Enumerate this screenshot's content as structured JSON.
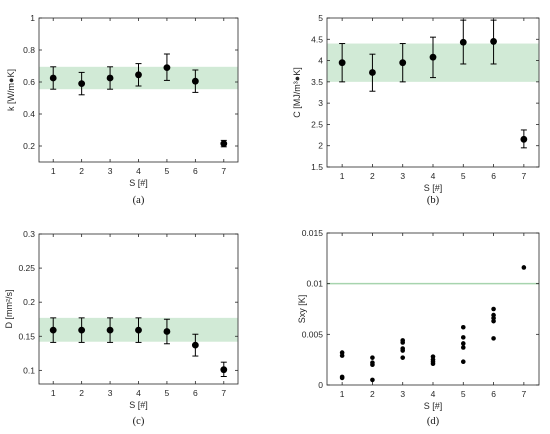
{
  "chart_data": [
    {
      "type": "scatter",
      "caption": "(a)",
      "xlabel": "S [#]",
      "ylabel": "k [W/m●K]",
      "xlim": [
        0.5,
        7.5
      ],
      "ylim": [
        0.1,
        1.0
      ],
      "xticks": [
        "1",
        "2",
        "3",
        "4",
        "5",
        "6",
        "7"
      ],
      "yticks": [
        "0.2",
        "0.4",
        "0.6",
        "0.8",
        "1"
      ],
      "band": [
        0.555,
        0.695
      ],
      "points": [
        {
          "x": 1,
          "y": 0.625,
          "lo": 0.555,
          "hi": 0.695
        },
        {
          "x": 2,
          "y": 0.59,
          "lo": 0.52,
          "hi": 0.66
        },
        {
          "x": 3,
          "y": 0.625,
          "lo": 0.555,
          "hi": 0.695
        },
        {
          "x": 4,
          "y": 0.645,
          "lo": 0.575,
          "hi": 0.715
        },
        {
          "x": 5,
          "y": 0.69,
          "lo": 0.61,
          "hi": 0.775
        },
        {
          "x": 6,
          "y": 0.605,
          "lo": 0.535,
          "hi": 0.675
        },
        {
          "x": 7,
          "y": 0.215,
          "lo": 0.195,
          "hi": 0.235
        }
      ]
    },
    {
      "type": "scatter",
      "caption": "(b)",
      "xlabel": "S [#]",
      "ylabel": "C [MJ/m³●K]",
      "xlim": [
        0.5,
        7.5
      ],
      "ylim": [
        1.5,
        5.0
      ],
      "xticks": [
        "1",
        "2",
        "3",
        "4",
        "5",
        "6",
        "7"
      ],
      "yticks": [
        "1.5",
        "2",
        "2.5",
        "3",
        "3.5",
        "4",
        "4.5",
        "5"
      ],
      "band": [
        3.5,
        4.4
      ],
      "points": [
        {
          "x": 1,
          "y": 3.95,
          "lo": 3.5,
          "hi": 4.4
        },
        {
          "x": 2,
          "y": 3.72,
          "lo": 3.28,
          "hi": 4.15
        },
        {
          "x": 3,
          "y": 3.95,
          "lo": 3.5,
          "hi": 4.4
        },
        {
          "x": 4,
          "y": 4.08,
          "lo": 3.6,
          "hi": 4.55
        },
        {
          "x": 5,
          "y": 4.43,
          "lo": 3.92,
          "hi": 4.95
        },
        {
          "x": 6,
          "y": 4.45,
          "lo": 3.92,
          "hi": 4.95
        },
        {
          "x": 7,
          "y": 2.15,
          "lo": 1.95,
          "hi": 2.37
        }
      ]
    },
    {
      "type": "scatter",
      "caption": "(c)",
      "xlabel": "S [#]",
      "ylabel": "D [mm²/s]",
      "xlim": [
        0.5,
        7.5
      ],
      "ylim": [
        0.08,
        0.3
      ],
      "xticks": [
        "1",
        "2",
        "3",
        "4",
        "5",
        "6",
        "7"
      ],
      "yticks": [
        "0.1",
        "0.15",
        "0.2",
        "0.25",
        "0.3"
      ],
      "band": [
        0.142,
        0.177
      ],
      "points": [
        {
          "x": 1,
          "y": 0.159,
          "lo": 0.141,
          "hi": 0.177
        },
        {
          "x": 2,
          "y": 0.159,
          "lo": 0.141,
          "hi": 0.177
        },
        {
          "x": 3,
          "y": 0.159,
          "lo": 0.141,
          "hi": 0.177
        },
        {
          "x": 4,
          "y": 0.159,
          "lo": 0.141,
          "hi": 0.177
        },
        {
          "x": 5,
          "y": 0.157,
          "lo": 0.139,
          "hi": 0.175
        },
        {
          "x": 6,
          "y": 0.137,
          "lo": 0.121,
          "hi": 0.153
        },
        {
          "x": 7,
          "y": 0.101,
          "lo": 0.091,
          "hi": 0.112
        }
      ]
    },
    {
      "type": "scatter",
      "caption": "(d)",
      "xlabel": "S [#]",
      "ylabel": "Sxy [K]",
      "xlim": [
        0.5,
        7.5
      ],
      "ylim": [
        0,
        0.015
      ],
      "xticks": [
        "1",
        "2",
        "3",
        "4",
        "5",
        "6",
        "7"
      ],
      "yticks": [
        "0",
        "0.005",
        "0.01",
        "0.015"
      ],
      "hline": 0.01,
      "points": [
        {
          "x": 1,
          "y": 0.0032
        },
        {
          "x": 1,
          "y": 0.0029
        },
        {
          "x": 1,
          "y": 0.0008
        },
        {
          "x": 1,
          "y": 0.0007
        },
        {
          "x": 2,
          "y": 0.0027
        },
        {
          "x": 2,
          "y": 0.0022
        },
        {
          "x": 2,
          "y": 0.002
        },
        {
          "x": 2,
          "y": 0.0005
        },
        {
          "x": 3,
          "y": 0.0044
        },
        {
          "x": 3,
          "y": 0.0042
        },
        {
          "x": 3,
          "y": 0.0036
        },
        {
          "x": 3,
          "y": 0.0034
        },
        {
          "x": 3,
          "y": 0.0027
        },
        {
          "x": 4,
          "y": 0.0028
        },
        {
          "x": 4,
          "y": 0.0025
        },
        {
          "x": 4,
          "y": 0.0023
        },
        {
          "x": 4,
          "y": 0.0021
        },
        {
          "x": 5,
          "y": 0.0057
        },
        {
          "x": 5,
          "y": 0.0047
        },
        {
          "x": 5,
          "y": 0.0041
        },
        {
          "x": 5,
          "y": 0.0037
        },
        {
          "x": 5,
          "y": 0.0023
        },
        {
          "x": 6,
          "y": 0.0075
        },
        {
          "x": 6,
          "y": 0.0069
        },
        {
          "x": 6,
          "y": 0.0066
        },
        {
          "x": 6,
          "y": 0.0063
        },
        {
          "x": 6,
          "y": 0.0046
        },
        {
          "x": 7,
          "y": 0.0116
        }
      ]
    }
  ],
  "colors": {
    "band": "#d1ead6",
    "hline": "#a7d4ae",
    "marker": "#000000",
    "axis": "#262626"
  }
}
